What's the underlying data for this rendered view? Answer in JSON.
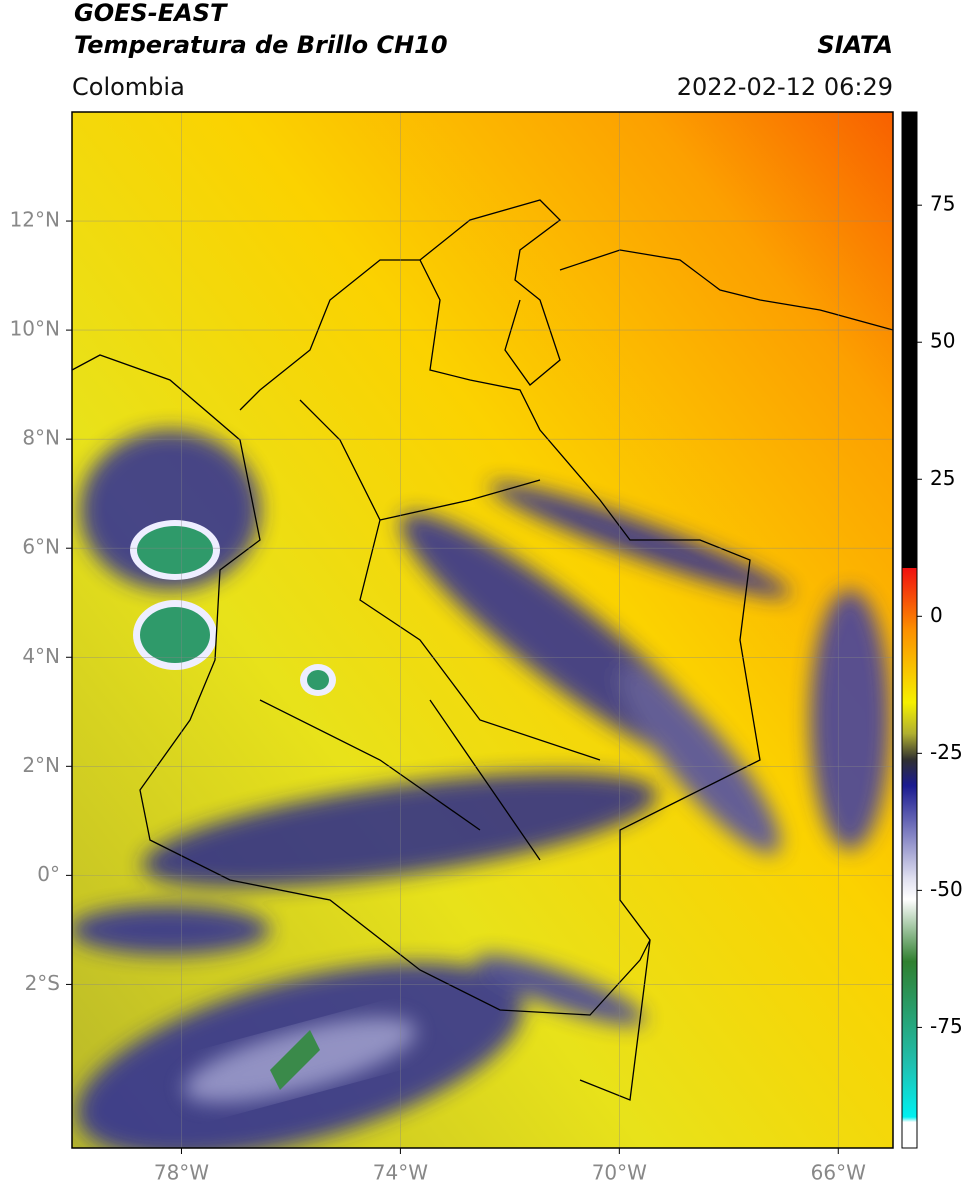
{
  "header": {
    "title": "GOES-EAST",
    "subtitle": "Temperatura de Brillo CH10",
    "source": "SIATA",
    "region": "Colombia",
    "timestamp": "2022-02-12 06:29"
  },
  "map": {
    "xlim": [
      -80,
      -65
    ],
    "ylim": [
      -5,
      14
    ],
    "xticks": [
      {
        "value": -78,
        "label": "78°W"
      },
      {
        "value": -74,
        "label": "74°W"
      },
      {
        "value": -70,
        "label": "70°W"
      },
      {
        "value": -66,
        "label": "66°W"
      }
    ],
    "yticks": [
      {
        "value": 12,
        "label": "12°N"
      },
      {
        "value": 10,
        "label": "10°N"
      },
      {
        "value": 8,
        "label": "8°N"
      },
      {
        "value": 6,
        "label": "6°N"
      },
      {
        "value": 4,
        "label": "4°N"
      },
      {
        "value": 2,
        "label": "2°N"
      },
      {
        "value": 0,
        "label": "0°"
      },
      {
        "value": -2,
        "label": "2°S"
      }
    ],
    "grid": true
  },
  "colorbar": {
    "lim": [
      -97,
      92
    ],
    "ticks": [
      75,
      50,
      25,
      0,
      -25,
      -50,
      -75
    ]
  }
}
